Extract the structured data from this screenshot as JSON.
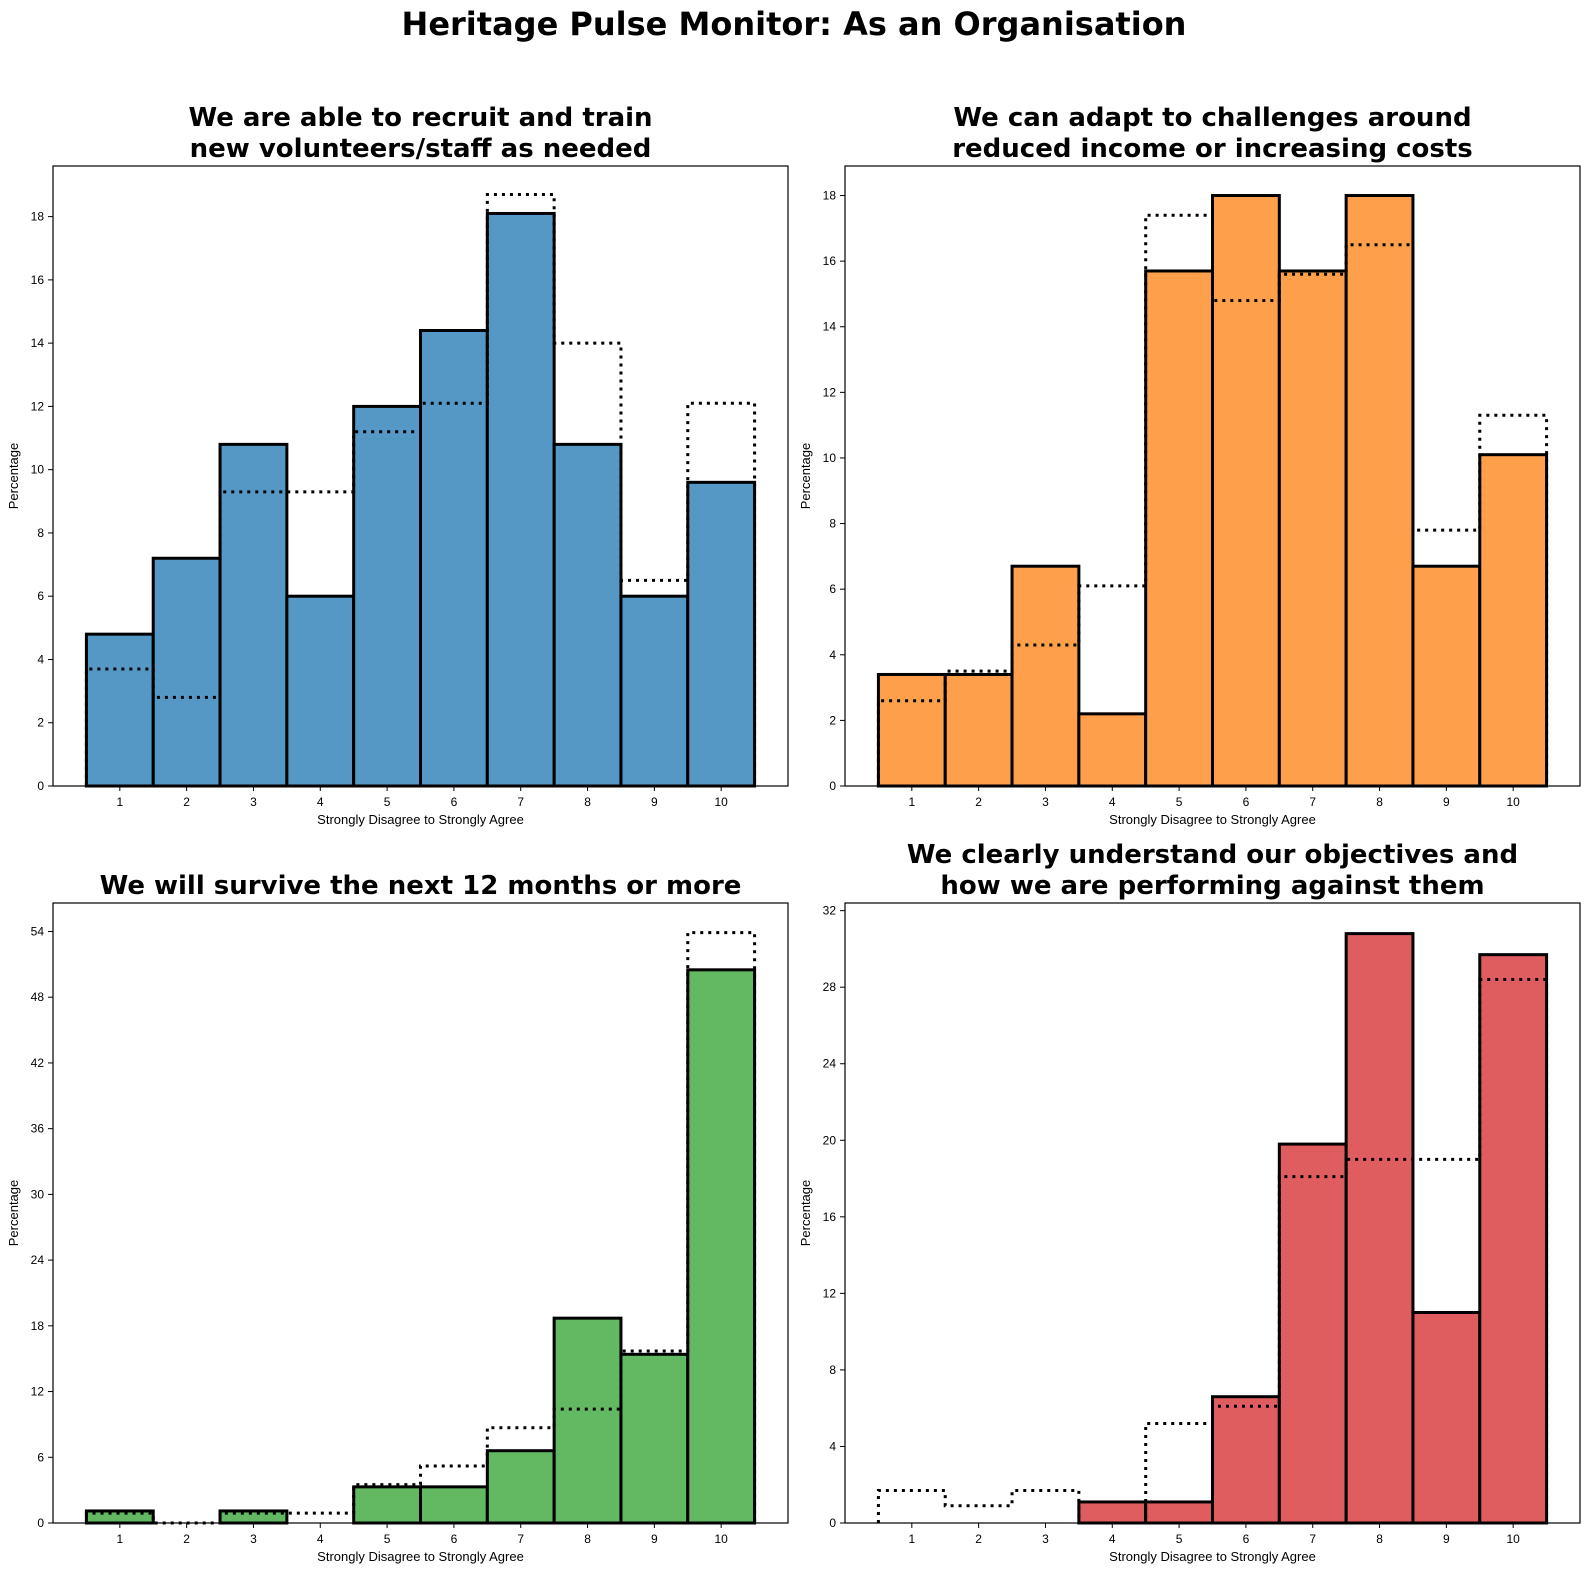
{
  "figure": {
    "title": "Heritage Pulse Monitor: As an Organisation"
  },
  "chart_data": [
    {
      "type": "bar",
      "title_lines": [
        "We are able to recruit and train",
        "new volunteers/staff as needed"
      ],
      "xlabel": "Strongly Disagree to Strongly Agree",
      "ylabel": "Percentage",
      "color": "#5598c6",
      "categories": [
        "1",
        "2",
        "3",
        "4",
        "5",
        "6",
        "7",
        "8",
        "9",
        "10"
      ],
      "values": [
        4.8,
        7.2,
        10.8,
        6.0,
        12.0,
        14.4,
        18.1,
        10.8,
        6.0,
        9.6
      ],
      "comparison": [
        3.7,
        2.8,
        9.3,
        9.3,
        11.2,
        12.1,
        18.7,
        14.0,
        6.5,
        12.1
      ],
      "ylim": [
        0,
        19.6
      ],
      "yticks": [
        0,
        2,
        4,
        6,
        8,
        10,
        12,
        14,
        16,
        18
      ]
    },
    {
      "type": "bar",
      "title_lines": [
        "We can adapt to challenges around",
        "reduced income or increasing costs"
      ],
      "xlabel": "Strongly Disagree to Strongly Agree",
      "ylabel": "Percentage",
      "color": "#fe9f4c",
      "categories": [
        "1",
        "2",
        "3",
        "4",
        "5",
        "6",
        "7",
        "8",
        "9",
        "10"
      ],
      "values": [
        3.4,
        3.4,
        6.7,
        2.2,
        15.7,
        18.0,
        15.7,
        18.0,
        6.7,
        10.1
      ],
      "comparison": [
        2.6,
        3.5,
        4.3,
        6.1,
        17.4,
        14.8,
        15.6,
        16.5,
        7.8,
        11.3
      ],
      "ylim": [
        0,
        18.9
      ],
      "yticks": [
        0,
        2,
        4,
        6,
        8,
        10,
        12,
        14,
        16,
        18
      ]
    },
    {
      "type": "bar",
      "title_lines": [
        "We will survive the next 12 months or more"
      ],
      "xlabel": "Strongly Disagree to Strongly Agree",
      "ylabel": "Percentage",
      "color": "#63b862",
      "categories": [
        "1",
        "2",
        "3",
        "4",
        "5",
        "6",
        "7",
        "8",
        "9",
        "10"
      ],
      "values": [
        1.1,
        0.0,
        1.1,
        0.0,
        3.3,
        3.3,
        6.6,
        18.7,
        15.4,
        50.5
      ],
      "comparison": [
        0.9,
        0.0,
        0.9,
        0.9,
        3.5,
        5.2,
        8.7,
        10.4,
        15.7,
        53.9
      ],
      "ylim": [
        0,
        56.6
      ],
      "yticks": [
        0,
        6,
        12,
        18,
        24,
        30,
        36,
        42,
        48,
        54
      ]
    },
    {
      "type": "bar",
      "title_lines": [
        "We clearly understand our objectives and",
        "how we are performing against them"
      ],
      "xlabel": "Strongly Disagree to Strongly Agree",
      "ylabel": "Percentage",
      "color": "#e05d5f",
      "categories": [
        "1",
        "2",
        "3",
        "4",
        "5",
        "6",
        "7",
        "8",
        "9",
        "10"
      ],
      "values": [
        0.0,
        0.0,
        0.0,
        1.1,
        1.1,
        6.6,
        19.8,
        30.8,
        11.0,
        29.7
      ],
      "comparison": [
        1.7,
        0.9,
        1.7,
        0.0,
        5.2,
        6.1,
        18.1,
        19.0,
        19.0,
        28.4
      ],
      "ylim": [
        0,
        32.4
      ],
      "yticks": [
        0,
        4,
        8,
        12,
        16,
        20,
        24,
        28,
        32
      ]
    }
  ]
}
